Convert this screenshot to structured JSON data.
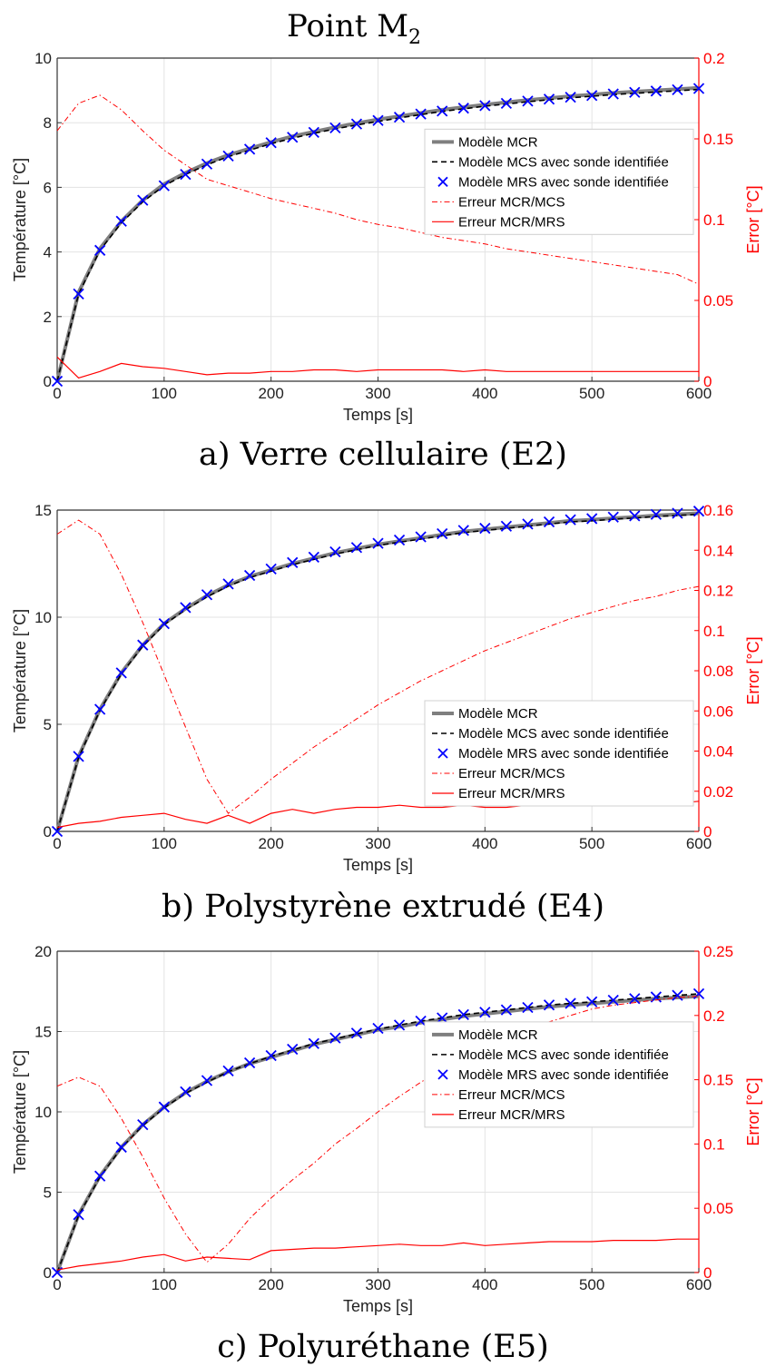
{
  "figure": {
    "title": "Point M",
    "title_subscript": "2"
  },
  "colors": {
    "mcr": "#7f7f7f",
    "mcs": "#000000",
    "mrs": "#0000ff",
    "error": "#ff0000"
  },
  "chart_data": [
    {
      "type": "line",
      "caption": "a) Verre cellulaire (E2)",
      "xlabel": "Temps [s]",
      "ylabel": "Température [°C]",
      "ylabel_right": "Error [°C]",
      "xlim": [
        0,
        600
      ],
      "ylim": [
        0,
        10
      ],
      "ylim_right": [
        0,
        0.2
      ],
      "xticks": [
        "0",
        "100",
        "200",
        "300",
        "400",
        "500",
        "600"
      ],
      "yticks": [
        "0",
        "2",
        "4",
        "6",
        "8",
        "10"
      ],
      "yticks_right": [
        "0",
        "0.05",
        "0.1",
        "0.15",
        "0.2"
      ],
      "grid": true,
      "legend_position": "right",
      "legend": [
        "Modèle MCR",
        "Modèle MCS avec sonde identifiée",
        "Modèle MRS avec sonde identifiée",
        "Erreur MCR/MCS",
        "Erreur MCR/MRS"
      ],
      "x": [
        0,
        20,
        40,
        60,
        80,
        100,
        120,
        140,
        160,
        180,
        200,
        220,
        240,
        260,
        280,
        300,
        320,
        340,
        360,
        380,
        400,
        420,
        440,
        460,
        480,
        500,
        520,
        540,
        560,
        580,
        600
      ],
      "series": [
        {
          "name": "Modèle MCR",
          "axis": "left",
          "style": "solid-thick",
          "values": [
            0,
            2.75,
            4.1,
            4.95,
            5.6,
            6.1,
            6.45,
            6.75,
            7.0,
            7.2,
            7.4,
            7.58,
            7.72,
            7.86,
            7.98,
            8.1,
            8.2,
            8.3,
            8.4,
            8.48,
            8.56,
            8.63,
            8.7,
            8.76,
            8.82,
            8.87,
            8.92,
            8.96,
            9.0,
            9.04,
            9.08
          ]
        },
        {
          "name": "Modèle MCS avec sonde identifiée",
          "axis": "left",
          "style": "dashed",
          "values": [
            0,
            2.7,
            4.05,
            4.9,
            5.55,
            6.05,
            6.4,
            6.7,
            6.95,
            7.15,
            7.35,
            7.52,
            7.67,
            7.81,
            7.93,
            8.04,
            8.15,
            8.25,
            8.35,
            8.43,
            8.51,
            8.58,
            8.65,
            8.71,
            8.77,
            8.82,
            8.87,
            8.91,
            8.95,
            8.99,
            9.03
          ]
        },
        {
          "name": "Modèle MRS avec sonde identifiée",
          "axis": "left",
          "style": "markers-x",
          "values": [
            0,
            2.7,
            4.05,
            4.95,
            5.6,
            6.05,
            6.4,
            6.72,
            6.97,
            7.18,
            7.38,
            7.55,
            7.7,
            7.84,
            7.96,
            8.07,
            8.17,
            8.27,
            8.36,
            8.45,
            8.53,
            8.6,
            8.67,
            8.73,
            8.79,
            8.84,
            8.89,
            8.94,
            8.98,
            9.02,
            9.06
          ]
        },
        {
          "name": "Erreur MCR/MCS",
          "axis": "right",
          "style": "dashdot",
          "values": [
            0.155,
            0.172,
            0.177,
            0.168,
            0.155,
            0.143,
            0.134,
            0.125,
            0.121,
            0.117,
            0.113,
            0.11,
            0.107,
            0.104,
            0.1,
            0.097,
            0.095,
            0.092,
            0.089,
            0.087,
            0.085,
            0.082,
            0.08,
            0.078,
            0.076,
            0.074,
            0.072,
            0.07,
            0.068,
            0.066,
            0.06
          ]
        },
        {
          "name": "Erreur MCR/MRS",
          "axis": "right",
          "style": "solid",
          "values": [
            0.015,
            0.002,
            0.006,
            0.011,
            0.009,
            0.008,
            0.006,
            0.004,
            0.005,
            0.005,
            0.006,
            0.006,
            0.007,
            0.007,
            0.006,
            0.007,
            0.007,
            0.007,
            0.007,
            0.006,
            0.007,
            0.006,
            0.006,
            0.006,
            0.006,
            0.006,
            0.006,
            0.006,
            0.006,
            0.006,
            0.006
          ]
        }
      ]
    },
    {
      "type": "line",
      "caption": "b) Polystyrène extrudé (E4)",
      "xlabel": "Temps [s]",
      "ylabel": "Température [°C]",
      "ylabel_right": "Error [°C]",
      "xlim": [
        0,
        600
      ],
      "ylim": [
        0,
        15
      ],
      "ylim_right": [
        0,
        0.16
      ],
      "xticks": [
        "0",
        "100",
        "200",
        "300",
        "400",
        "500",
        "600"
      ],
      "yticks": [
        "0",
        "5",
        "10",
        "15"
      ],
      "yticks_right": [
        "0",
        "0.02",
        "0.04",
        "0.06",
        "0.08",
        "0.1",
        "0.12",
        "0.14",
        "0.16"
      ],
      "grid": true,
      "legend_position": "bottom-right",
      "legend": [
        "Modèle MCR",
        "Modèle MCS avec sonde identifiée",
        "Modèle MRS avec sonde identifiée",
        "Erreur MCR/MCS",
        "Erreur MCR/MRS"
      ],
      "x": [
        0,
        20,
        40,
        60,
        80,
        100,
        120,
        140,
        160,
        180,
        200,
        220,
        240,
        260,
        280,
        300,
        320,
        340,
        360,
        380,
        400,
        420,
        440,
        460,
        480,
        500,
        520,
        540,
        560,
        580,
        600
      ],
      "series": [
        {
          "name": "Modèle MCR",
          "axis": "left",
          "style": "solid-thick",
          "values": [
            0,
            3.5,
            5.7,
            7.4,
            8.7,
            9.7,
            10.4,
            11.0,
            11.5,
            11.9,
            12.2,
            12.5,
            12.75,
            13.0,
            13.2,
            13.4,
            13.55,
            13.7,
            13.85,
            14.0,
            14.1,
            14.2,
            14.3,
            14.4,
            14.5,
            14.55,
            14.62,
            14.68,
            14.75,
            14.8,
            14.85
          ]
        },
        {
          "name": "Modèle MCS avec sonde identifiée",
          "axis": "left",
          "style": "dashed",
          "values": [
            0,
            3.45,
            5.65,
            7.35,
            8.65,
            9.65,
            10.35,
            10.95,
            11.45,
            11.85,
            12.15,
            12.45,
            12.7,
            12.95,
            13.15,
            13.35,
            13.5,
            13.65,
            13.8,
            13.95,
            14.05,
            14.15,
            14.25,
            14.35,
            14.45,
            14.5,
            14.57,
            14.63,
            14.7,
            14.75,
            14.8
          ]
        },
        {
          "name": "Modèle MRS avec sonde identifiée",
          "axis": "left",
          "style": "markers-x",
          "values": [
            0,
            3.5,
            5.7,
            7.4,
            8.7,
            9.7,
            10.45,
            11.05,
            11.55,
            11.95,
            12.25,
            12.55,
            12.8,
            13.05,
            13.25,
            13.45,
            13.6,
            13.75,
            13.9,
            14.05,
            14.15,
            14.25,
            14.35,
            14.45,
            14.55,
            14.6,
            14.67,
            14.73,
            14.8,
            14.85,
            14.95
          ]
        },
        {
          "name": "Erreur MCR/MCS",
          "axis": "right",
          "style": "dashdot",
          "values": [
            0.148,
            0.155,
            0.148,
            0.128,
            0.104,
            0.078,
            0.052,
            0.026,
            0.009,
            0.017,
            0.026,
            0.034,
            0.042,
            0.049,
            0.056,
            0.063,
            0.069,
            0.075,
            0.08,
            0.085,
            0.09,
            0.094,
            0.098,
            0.102,
            0.106,
            0.109,
            0.112,
            0.115,
            0.117,
            0.12,
            0.122
          ]
        },
        {
          "name": "Erreur MCR/MRS",
          "axis": "right",
          "style": "solid",
          "values": [
            0.002,
            0.004,
            0.005,
            0.007,
            0.008,
            0.009,
            0.006,
            0.004,
            0.008,
            0.004,
            0.009,
            0.011,
            0.009,
            0.011,
            0.012,
            0.012,
            0.013,
            0.012,
            0.012,
            0.013,
            0.012,
            0.012,
            0.013,
            0.013,
            0.013,
            0.013,
            0.014,
            0.014,
            0.014,
            0.014,
            0.015
          ]
        }
      ]
    },
    {
      "type": "line",
      "caption": "c) Polyuréthane (E5)",
      "xlabel": "Temps [s]",
      "ylabel": "Température [°C]",
      "ylabel_right": "Error [°C]",
      "xlim": [
        0,
        600
      ],
      "ylim": [
        0,
        20
      ],
      "ylim_right": [
        0,
        0.25
      ],
      "xticks": [
        "0",
        "100",
        "200",
        "300",
        "400",
        "500",
        "600"
      ],
      "yticks": [
        "0",
        "5",
        "10",
        "15",
        "20"
      ],
      "yticks_right": [
        "0",
        "0.05",
        "0.1",
        "0.15",
        "0.2",
        "0.25"
      ],
      "grid": true,
      "legend_position": "right",
      "legend": [
        "Modèle MCR",
        "Modèle MCS avec sonde identifiée",
        "Modèle MRS avec sonde identifiée",
        "Erreur MCR/MCS",
        "Erreur MCR/MRS"
      ],
      "x": [
        0,
        20,
        40,
        60,
        80,
        100,
        120,
        140,
        160,
        180,
        200,
        220,
        240,
        260,
        280,
        300,
        320,
        340,
        360,
        380,
        400,
        420,
        440,
        460,
        480,
        500,
        520,
        540,
        560,
        580,
        600
      ],
      "series": [
        {
          "name": "Modèle MCR",
          "axis": "left",
          "style": "solid-thick",
          "values": [
            0,
            3.6,
            6.0,
            7.8,
            9.2,
            10.3,
            11.2,
            11.9,
            12.5,
            13.0,
            13.4,
            13.8,
            14.2,
            14.5,
            14.8,
            15.1,
            15.3,
            15.55,
            15.75,
            15.95,
            16.1,
            16.25,
            16.4,
            16.55,
            16.65,
            16.75,
            16.85,
            16.95,
            17.05,
            17.12,
            17.2
          ]
        },
        {
          "name": "Modèle MCS avec sonde identifiée",
          "axis": "left",
          "style": "dashed",
          "values": [
            0,
            3.55,
            5.95,
            7.75,
            9.15,
            10.25,
            11.15,
            11.85,
            12.5,
            13.0,
            13.45,
            13.85,
            14.25,
            14.55,
            14.85,
            15.15,
            15.4,
            15.65,
            15.85,
            16.05,
            16.2,
            16.35,
            16.5,
            16.65,
            16.75,
            16.85,
            16.95,
            17.05,
            17.15,
            17.25,
            17.35
          ]
        },
        {
          "name": "Modèle MRS avec sonde identifiée",
          "axis": "left",
          "style": "markers-x",
          "values": [
            0,
            3.6,
            6.0,
            7.8,
            9.2,
            10.3,
            11.25,
            11.95,
            12.55,
            13.05,
            13.5,
            13.9,
            14.25,
            14.6,
            14.9,
            15.2,
            15.4,
            15.65,
            15.85,
            16.05,
            16.2,
            16.35,
            16.5,
            16.65,
            16.75,
            16.85,
            16.95,
            17.05,
            17.15,
            17.25,
            17.35
          ]
        },
        {
          "name": "Erreur MCR/MCS",
          "axis": "right",
          "style": "dashdot",
          "values": [
            0.145,
            0.152,
            0.145,
            0.12,
            0.09,
            0.058,
            0.03,
            0.008,
            0.022,
            0.042,
            0.058,
            0.072,
            0.085,
            0.1,
            0.112,
            0.125,
            0.137,
            0.148,
            0.158,
            0.166,
            0.175,
            0.182,
            0.19,
            0.195,
            0.2,
            0.205,
            0.208,
            0.21,
            0.212,
            0.214,
            0.215
          ]
        },
        {
          "name": "Erreur MCR/MRS",
          "axis": "right",
          "style": "solid",
          "values": [
            0.002,
            0.005,
            0.007,
            0.009,
            0.012,
            0.014,
            0.009,
            0.012,
            0.011,
            0.01,
            0.017,
            0.018,
            0.019,
            0.019,
            0.02,
            0.021,
            0.022,
            0.021,
            0.021,
            0.023,
            0.021,
            0.022,
            0.023,
            0.024,
            0.024,
            0.024,
            0.025,
            0.025,
            0.025,
            0.026,
            0.026
          ]
        }
      ]
    }
  ]
}
